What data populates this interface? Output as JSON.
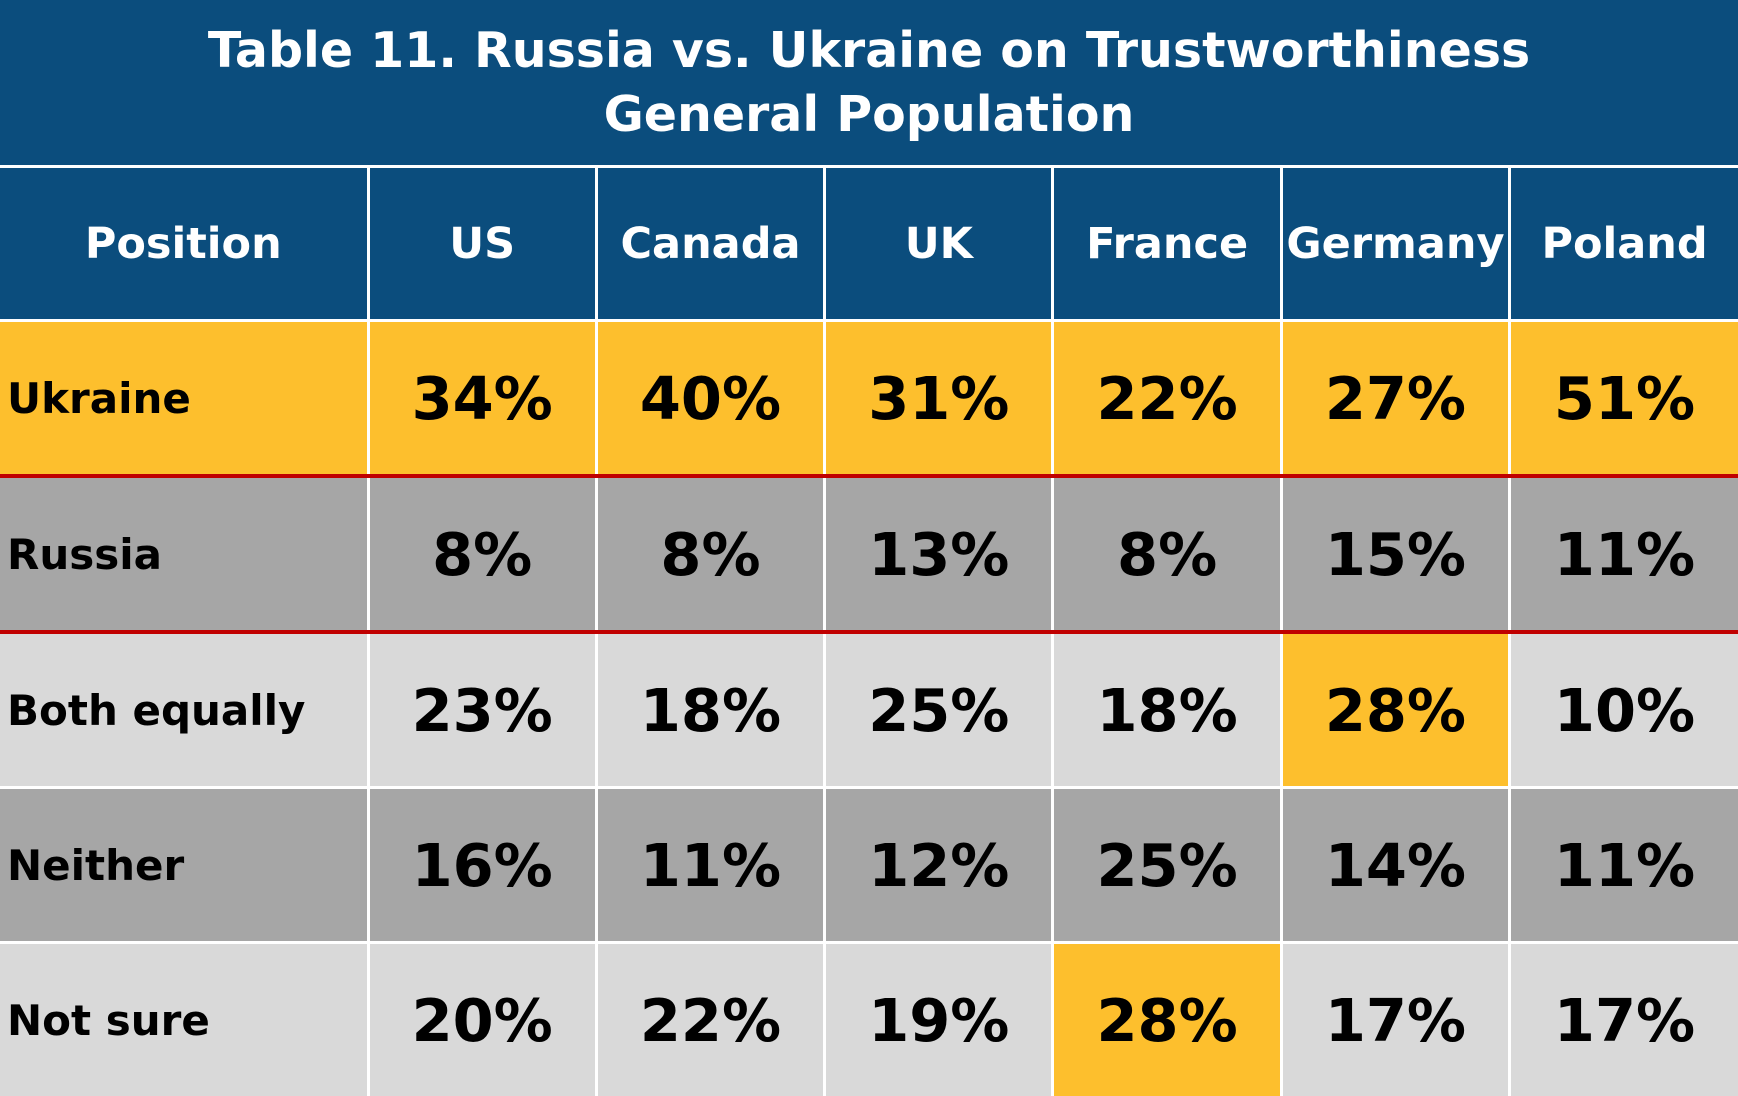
{
  "chart_data": {
    "type": "table",
    "title": "Table 11. Russia vs. Ukraine on Trustworthiness",
    "subtitle": "General Population",
    "columns": [
      "Position",
      "US",
      "Canada",
      "UK",
      "France",
      "Germany",
      "Poland"
    ],
    "rows": [
      {
        "label": "Ukraine",
        "values": [
          "34%",
          "40%",
          "31%",
          "22%",
          "27%",
          "51%"
        ]
      },
      {
        "label": "Russia",
        "values": [
          "8%",
          "8%",
          "13%",
          "8%",
          "15%",
          "11%"
        ]
      },
      {
        "label": "Both equally",
        "values": [
          "23%",
          "18%",
          "25%",
          "18%",
          "28%",
          "10%"
        ]
      },
      {
        "label": "Neither",
        "values": [
          "16%",
          "11%",
          "12%",
          "25%",
          "14%",
          "11%"
        ]
      },
      {
        "label": "Not sure",
        "values": [
          "20%",
          "22%",
          "19%",
          "28%",
          "17%",
          "17%"
        ]
      }
    ],
    "highlighted_cells": [
      {
        "row": "Both equally",
        "column": "Germany"
      },
      {
        "row": "Not sure",
        "column": "France"
      }
    ]
  },
  "colors": {
    "header_bg": "#0b4d7d",
    "header_text": "#ffffff",
    "highlight": "#fdbf2d",
    "row_dark": "#a6a6a6",
    "row_light": "#d9d9d9",
    "separator": "#c00000"
  }
}
